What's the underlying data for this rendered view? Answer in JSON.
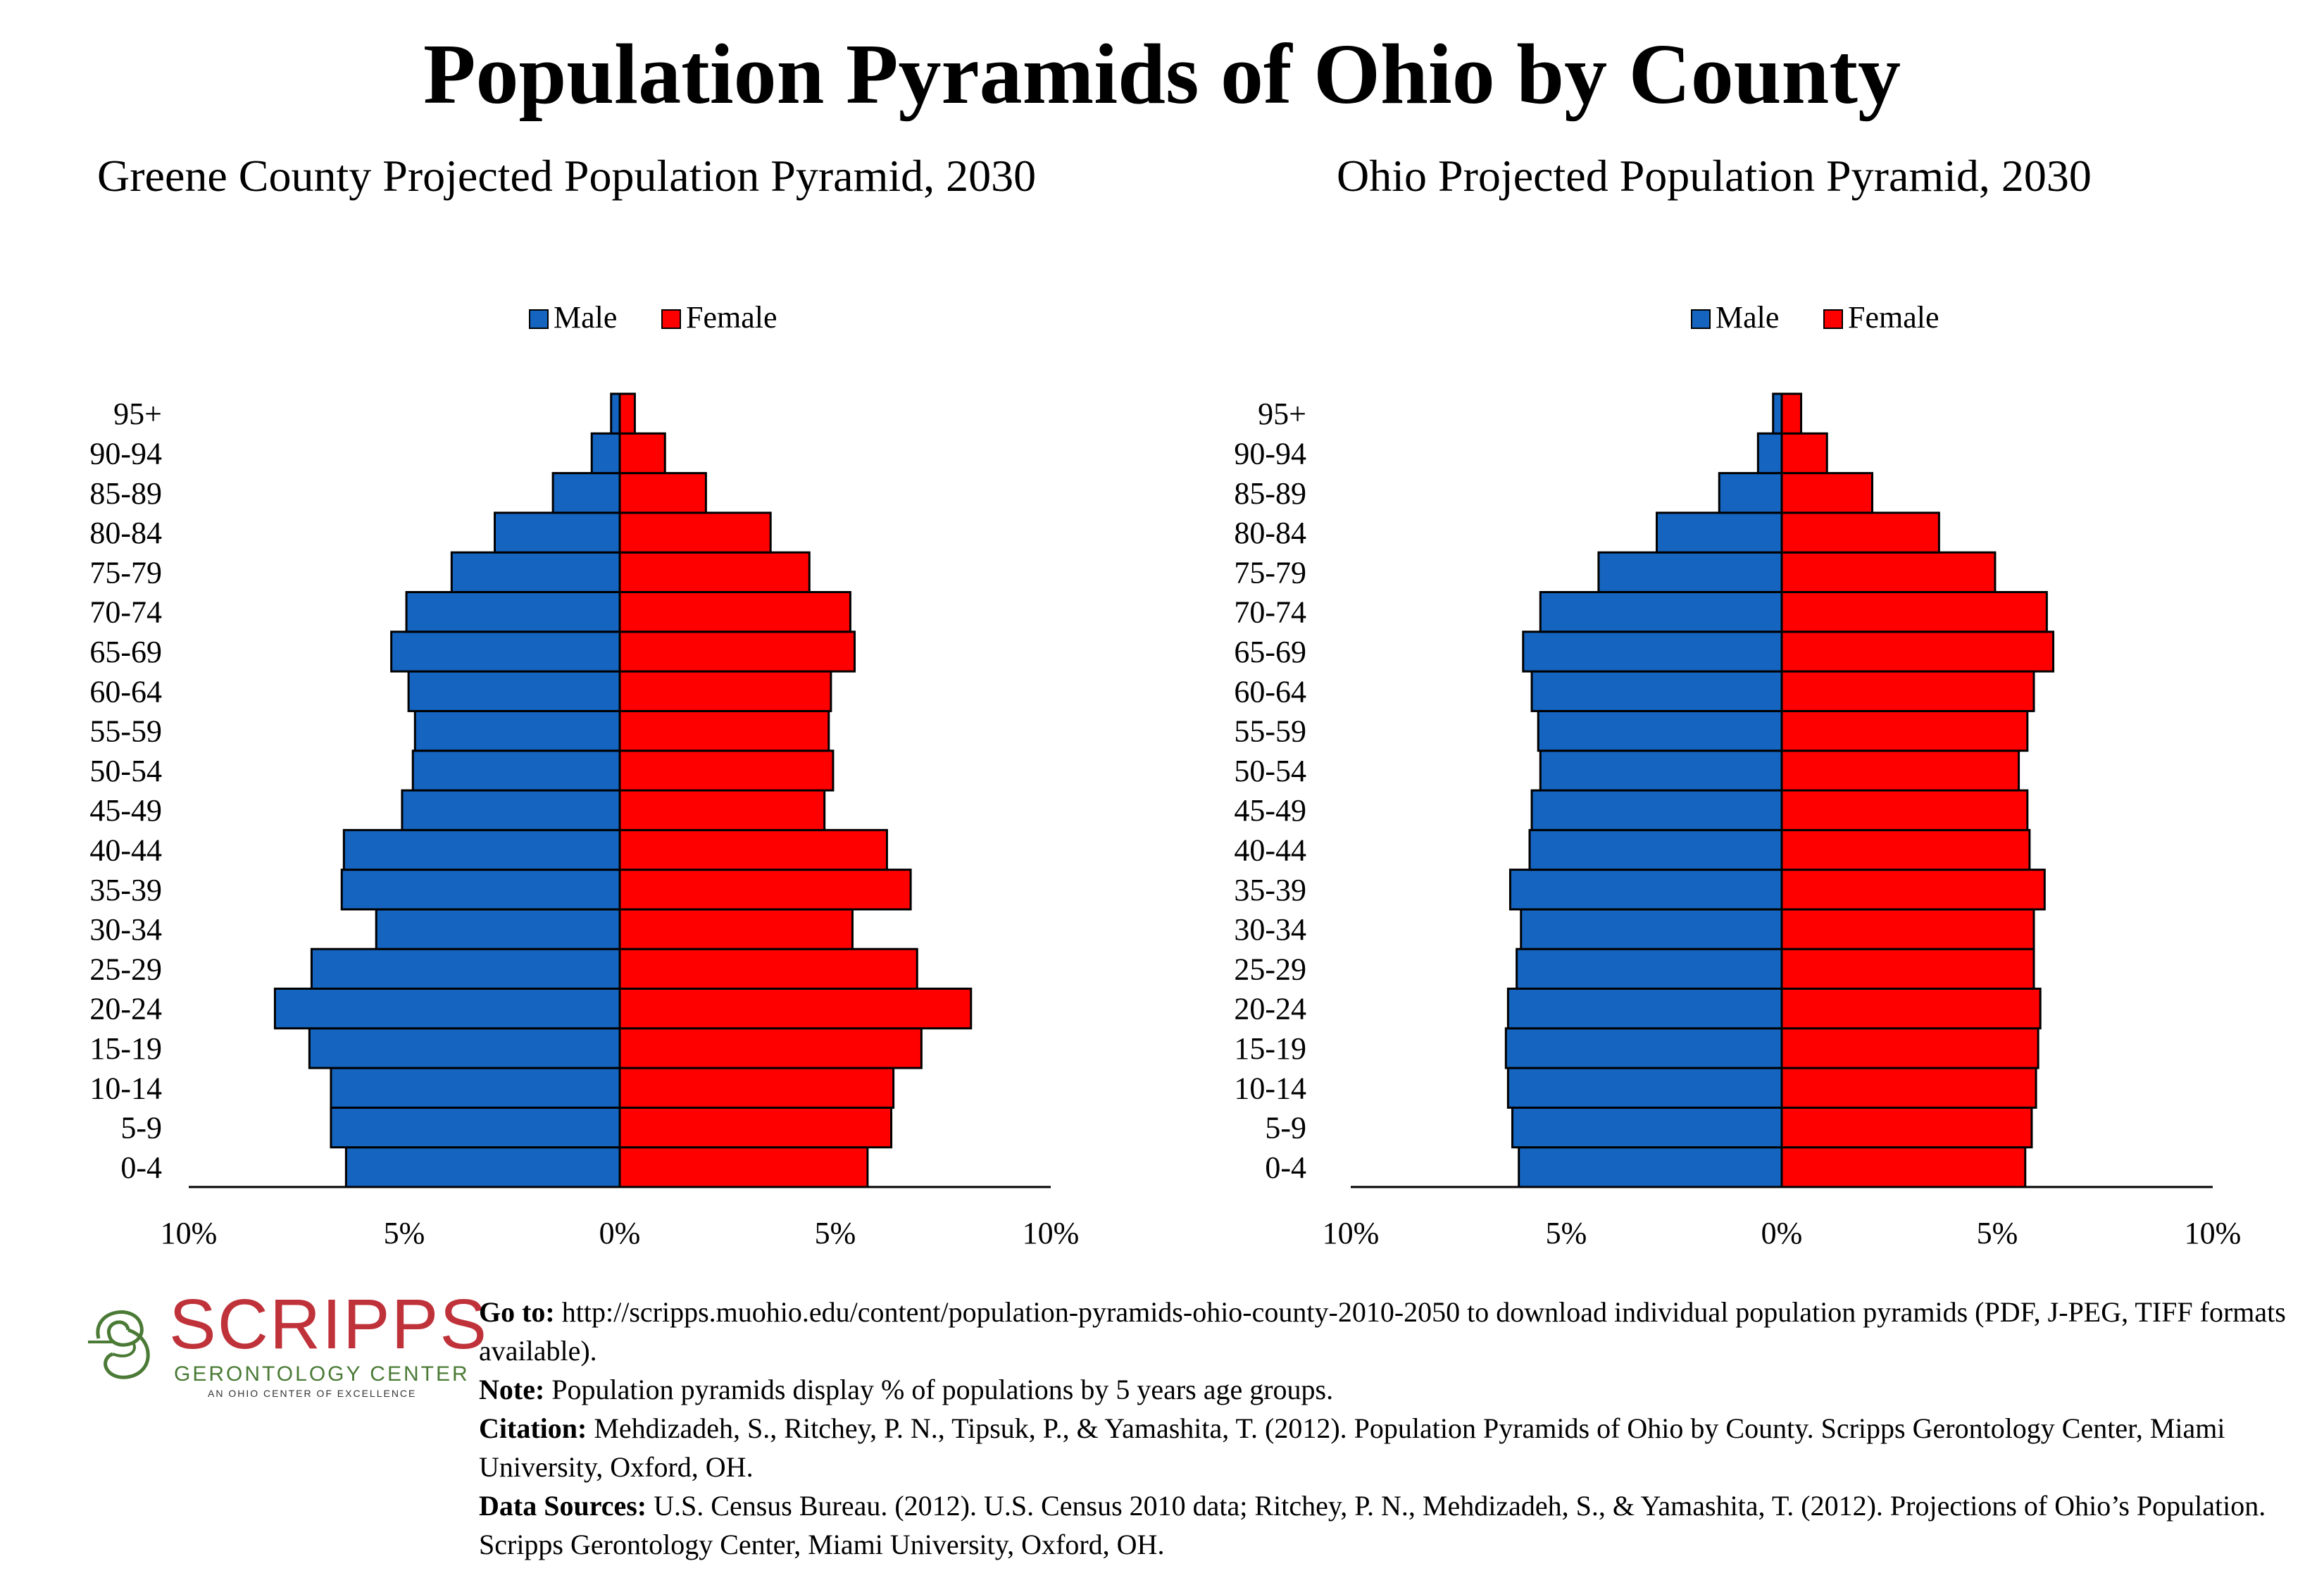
{
  "title": "Population Pyramids of Ohio by County",
  "chart_data": [
    {
      "type": "bar",
      "title": "Greene County Projected Population Pyramid, 2030",
      "orientation": "horizontal-pyramid",
      "categories": [
        "0-4",
        "5-9",
        "10-14",
        "15-19",
        "20-24",
        "25-29",
        "30-34",
        "35-39",
        "40-44",
        "45-49",
        "50-54",
        "55-59",
        "60-64",
        "65-69",
        "70-74",
        "75-79",
        "80-84",
        "85-89",
        "90-94",
        "95+"
      ],
      "series": [
        {
          "name": "Male",
          "color": "#1565c0",
          "values": [
            6.35,
            6.7,
            6.7,
            7.2,
            8.0,
            7.15,
            5.65,
            6.45,
            6.4,
            5.05,
            4.8,
            4.75,
            4.9,
            5.3,
            4.95,
            3.9,
            2.9,
            1.55,
            0.65,
            0.2
          ]
        },
        {
          "name": "Female",
          "color": "#ff0000",
          "values": [
            5.75,
            6.3,
            6.35,
            7.0,
            8.15,
            6.9,
            5.4,
            6.75,
            6.2,
            4.75,
            4.95,
            4.85,
            4.9,
            5.45,
            5.35,
            4.4,
            3.5,
            2.0,
            1.05,
            0.35
          ]
        }
      ],
      "legend": "top-center",
      "xlim": [
        -10,
        10
      ],
      "xticks": [
        "10%",
        "5%",
        "0%",
        "5%",
        "10%"
      ]
    },
    {
      "type": "bar",
      "title": "Ohio Projected Population Pyramid, 2030",
      "orientation": "horizontal-pyramid",
      "categories": [
        "0-4",
        "5-9",
        "10-14",
        "15-19",
        "20-24",
        "25-29",
        "30-34",
        "35-39",
        "40-44",
        "45-49",
        "50-54",
        "55-59",
        "60-64",
        "65-69",
        "70-74",
        "75-79",
        "80-84",
        "85-89",
        "90-94",
        "95+"
      ],
      "series": [
        {
          "name": "Male",
          "color": "#1565c0",
          "values": [
            6.1,
            6.25,
            6.35,
            6.4,
            6.35,
            6.15,
            6.05,
            6.3,
            5.85,
            5.8,
            5.6,
            5.65,
            5.8,
            6.0,
            5.6,
            4.25,
            2.9,
            1.45,
            0.55,
            0.2
          ]
        },
        {
          "name": "Female",
          "color": "#ff0000",
          "values": [
            5.65,
            5.8,
            5.9,
            5.95,
            6.0,
            5.85,
            5.85,
            6.1,
            5.75,
            5.7,
            5.5,
            5.7,
            5.85,
            6.3,
            6.15,
            4.95,
            3.65,
            2.1,
            1.05,
            0.45
          ]
        }
      ],
      "legend": "top-center",
      "xlim": [
        -10,
        10
      ],
      "xticks": [
        "10%",
        "5%",
        "0%",
        "5%",
        "10%"
      ]
    }
  ],
  "logo": {
    "word": "SCRIPPS",
    "sub": "GERONTOLOGY CENTER",
    "tagline": "AN OHIO CENTER OF EXCELLENCE"
  },
  "notes": {
    "goto_label": "Go to:",
    "goto_text": "http://scripps.muohio.edu/content/population-pyramids-ohio-county-2010-2050 to download individual population pyramids (PDF, J-PEG, TIFF formats available).",
    "note_label": "Note:",
    "note_text": "Population pyramids display % of populations by 5 years age groups.",
    "citation_label": "Citation:",
    "citation_text": "Mehdizadeh, S., Ritchey, P. N., Tipsuk, P., & Yamashita, T. (2012). Population Pyramids of Ohio by County. Scripps Gerontology Center, Miami University, Oxford, OH.",
    "sources_label": "Data Sources:",
    "sources_text": "U.S. Census Bureau. (2012). U.S. Census 2010 data; Ritchey, P. N., Mehdizadeh, S., & Yamashita, T. (2012). Projections of Ohio’s Population. Scripps Gerontology Center, Miami University, Oxford, OH."
  }
}
